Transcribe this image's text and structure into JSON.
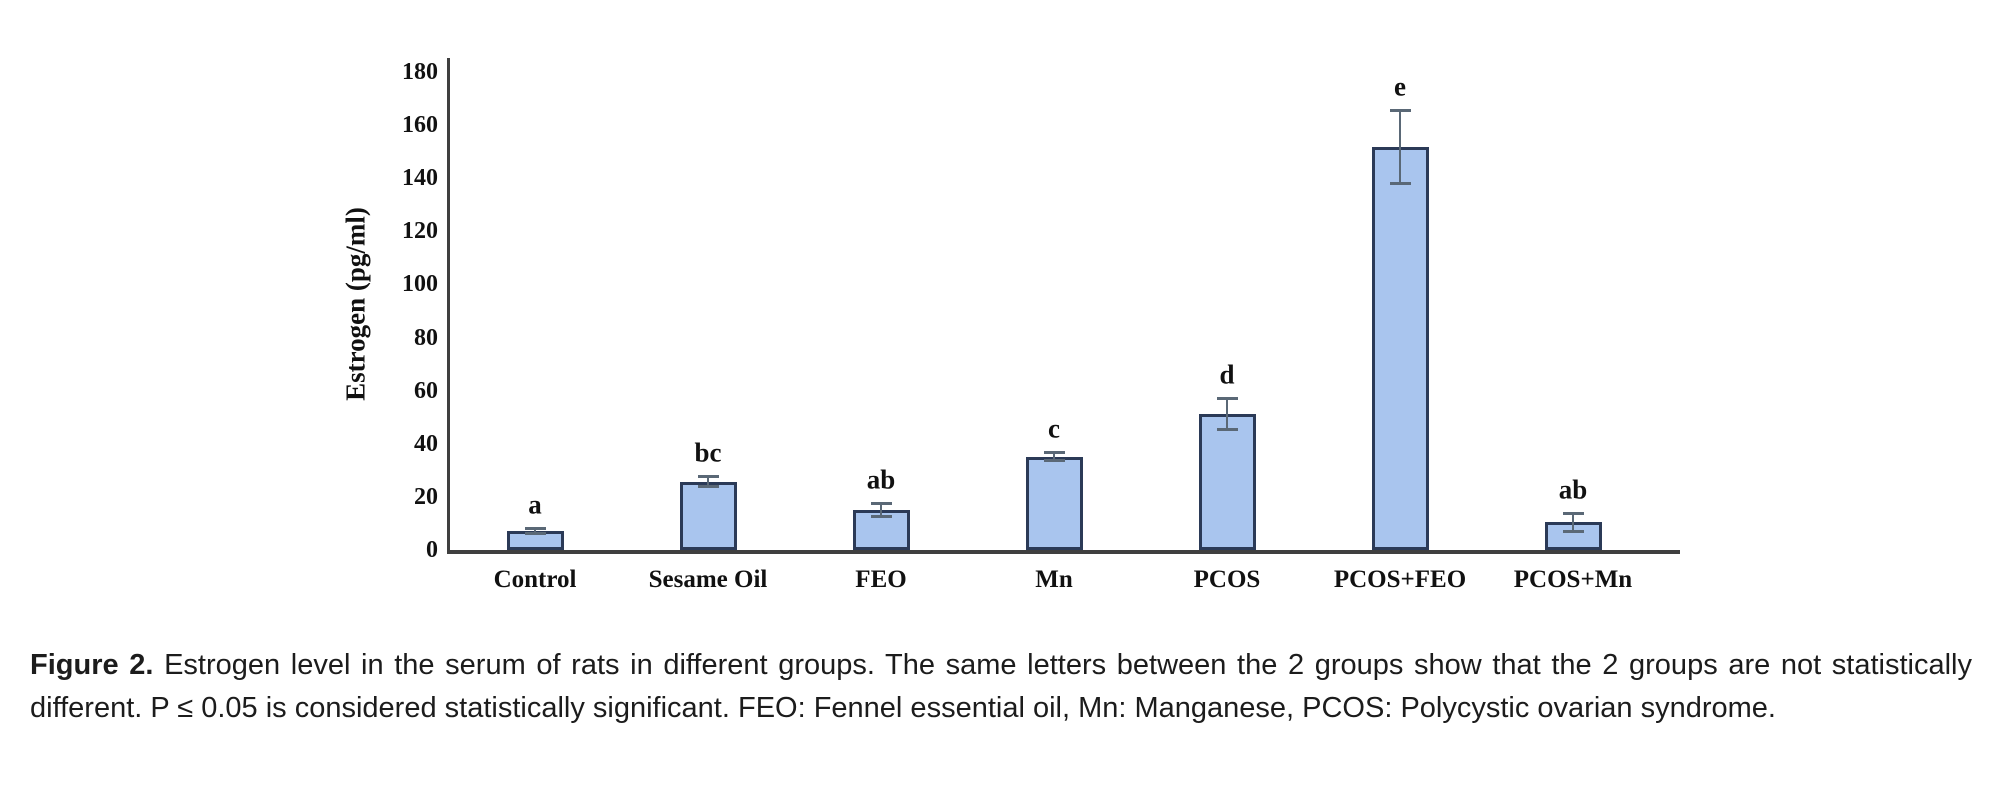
{
  "figure": {
    "caption_label": "Figure 2.",
    "caption_text": "Estrogen level in the serum of rats in different groups. The same letters between the 2 groups show that the 2 groups are not statistically different. P ≤ 0.05 is considered statistically significant. FEO: Fennel essential oil, Mn: Manganese, PCOS: Polycystic ovarian syndrome."
  },
  "chart_data": {
    "type": "bar",
    "title": "",
    "xlabel": "",
    "ylabel": "Estrogen (pg/ml)",
    "categories": [
      "Control",
      "Sesame Oil",
      "FEO",
      "Mn",
      "PCOS",
      "PCOS+FEO",
      "PCOS+Mn"
    ],
    "values": [
      7.2,
      25.7,
      15.1,
      35.1,
      51.2,
      151.8,
      10.4
    ],
    "errors": [
      1.2,
      2.0,
      2.7,
      1.7,
      5.9,
      14.0,
      3.5
    ],
    "sig_letters": [
      "a",
      "bc",
      "ab",
      "c",
      "d",
      "e",
      "ab"
    ],
    "ylim": [
      0,
      180
    ],
    "ytick_step": 20,
    "grid": false,
    "legend": null,
    "bar_fill": "#a9c5ee",
    "bar_border": "#2b3a57",
    "error_color": "#5a6876",
    "axis_color": "#3f3f3f"
  }
}
